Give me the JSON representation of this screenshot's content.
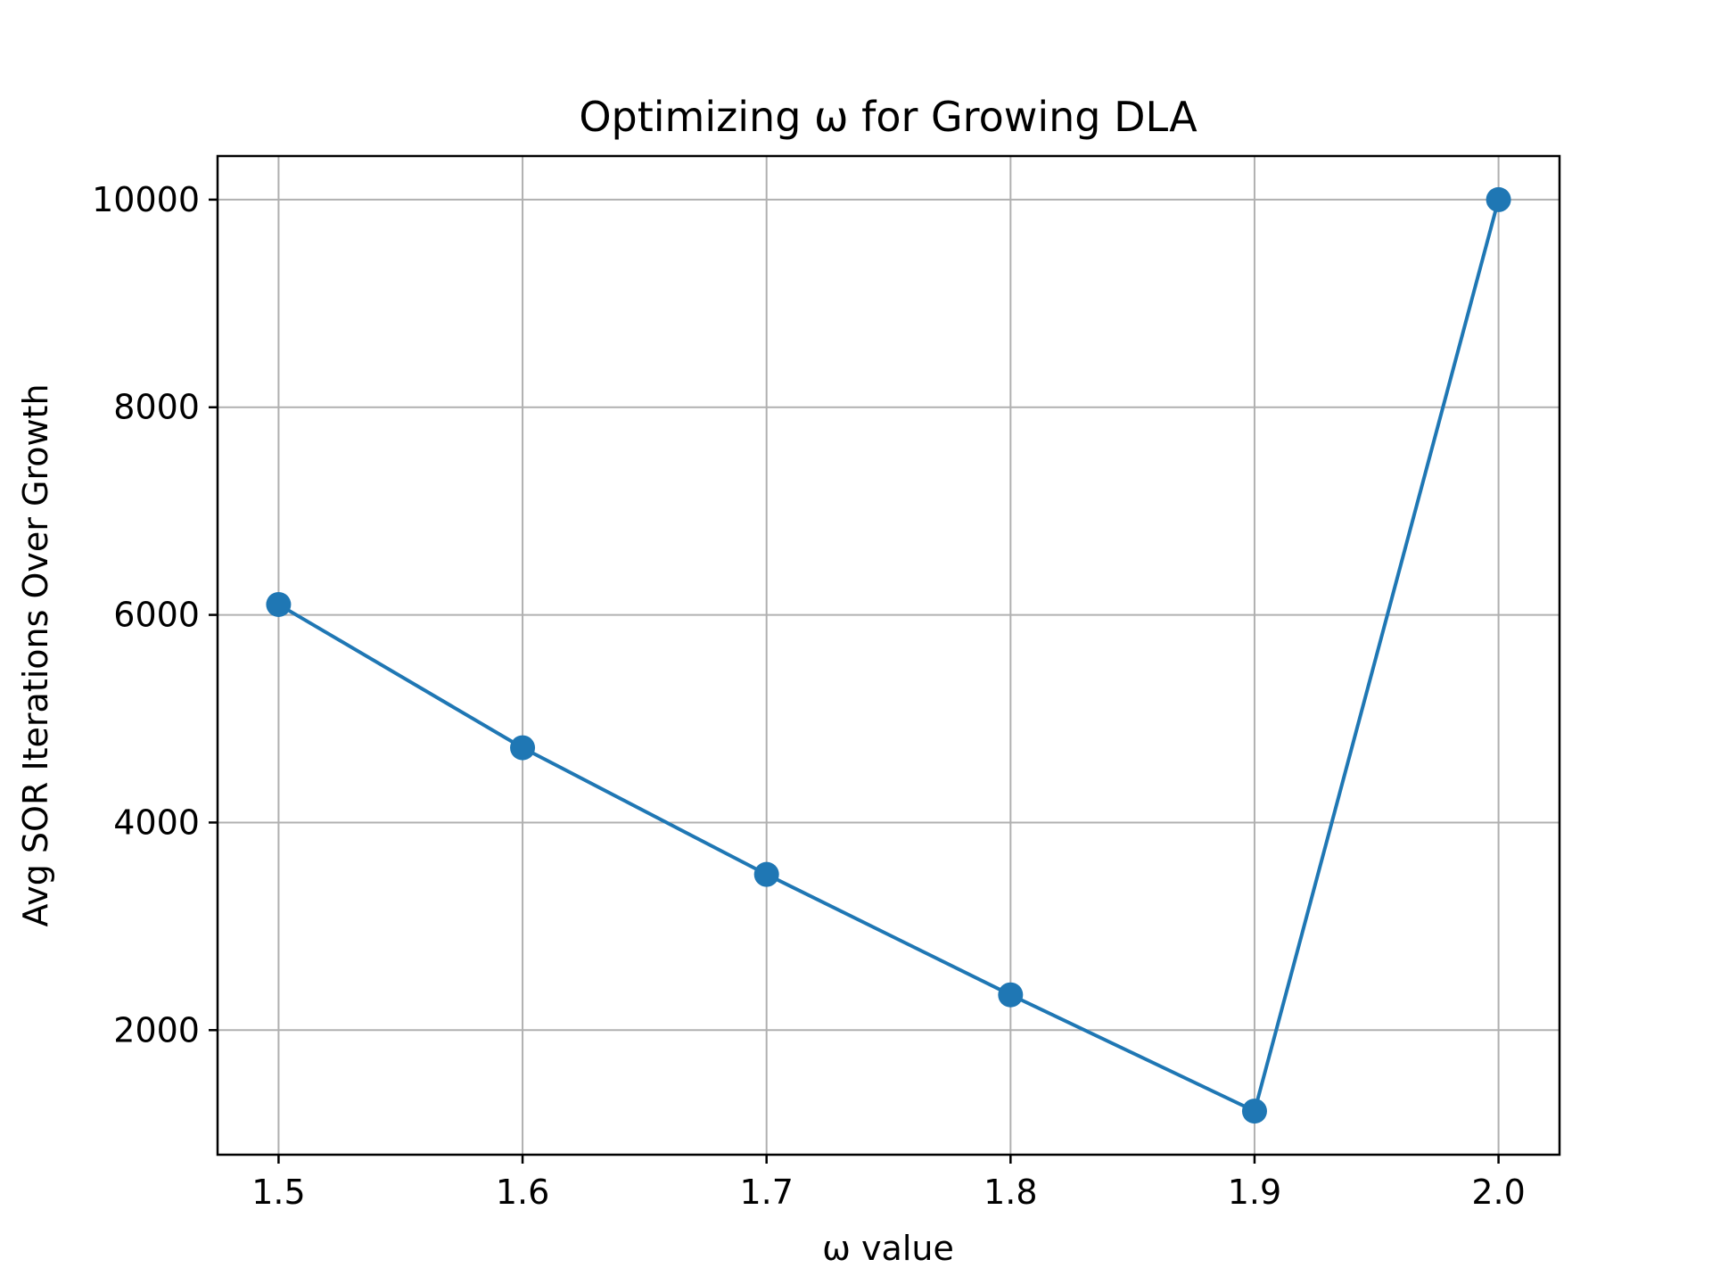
{
  "chart_data": {
    "type": "line",
    "title": "Optimizing ω for Growing DLA",
    "xlabel": "ω value",
    "ylabel": "Avg SOR Iterations Over Growth",
    "x": [
      1.5,
      1.6,
      1.7,
      1.8,
      1.9,
      2.0
    ],
    "series": [
      {
        "values": [
          6100,
          4720,
          3500,
          2340,
          1220,
          10000
        ],
        "color": "#1f77b4",
        "marker": "circle"
      }
    ],
    "xlim": [
      1.475,
      2.025
    ],
    "ylim": [
      800,
      10420
    ],
    "x_ticks": [
      1.5,
      1.6,
      1.7,
      1.8,
      1.9,
      2.0
    ],
    "x_tick_labels": [
      "1.5",
      "1.6",
      "1.7",
      "1.8",
      "1.9",
      "2.0"
    ],
    "y_ticks": [
      2000,
      4000,
      6000,
      8000,
      10000
    ],
    "y_tick_labels": [
      "2000",
      "4000",
      "6000",
      "8000",
      "10000"
    ],
    "grid": true,
    "grid_color": "#b0b0b0",
    "axis_color": "#000000"
  }
}
